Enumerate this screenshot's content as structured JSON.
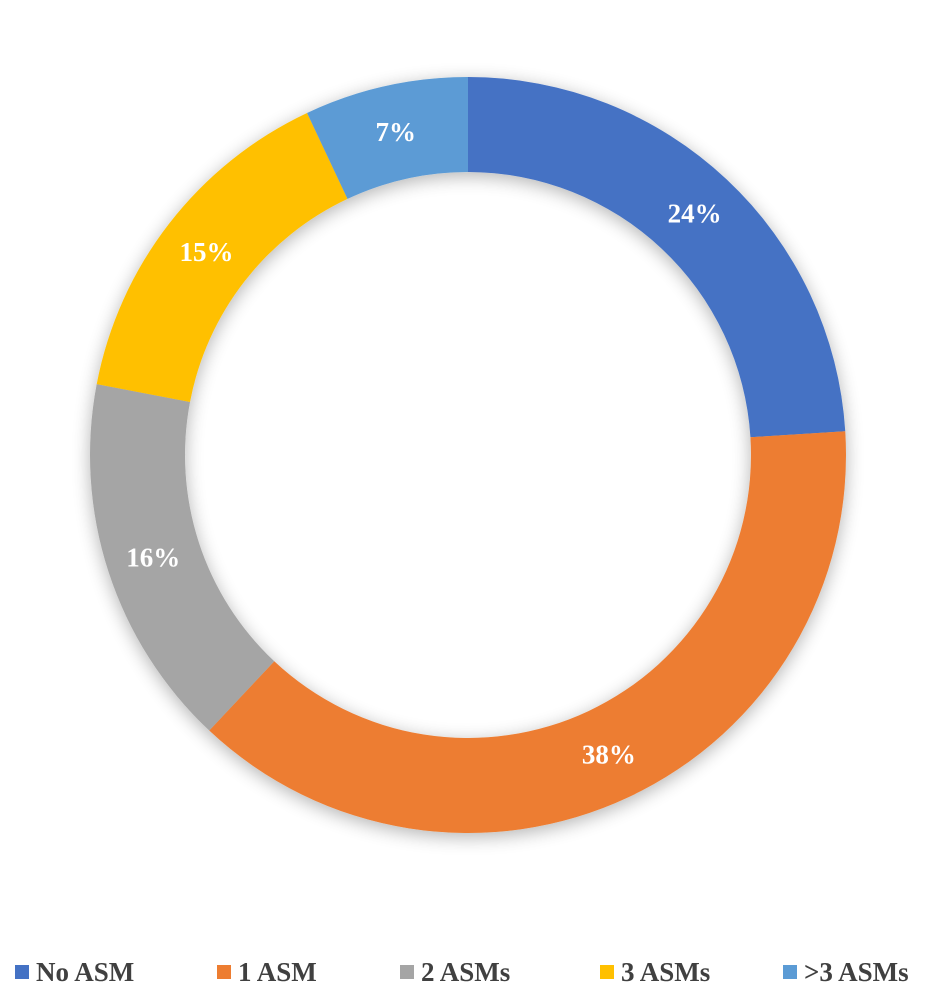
{
  "chart_data": {
    "type": "pie",
    "variant": "doughnut",
    "legend_position": "bottom",
    "categories": [
      "No ASM",
      "1 ASM",
      "2 ASMs",
      "3 ASMs",
      ">3 ASMs"
    ],
    "values": [
      24,
      38,
      16,
      15,
      7
    ],
    "labels": [
      "24%",
      "38%",
      "16%",
      "15%",
      "7%"
    ],
    "colors": [
      "#4472c4",
      "#ed7d31",
      "#a5a5a5",
      "#ffc000",
      "#5b9bd5"
    ],
    "label_color": "#ffffff"
  }
}
